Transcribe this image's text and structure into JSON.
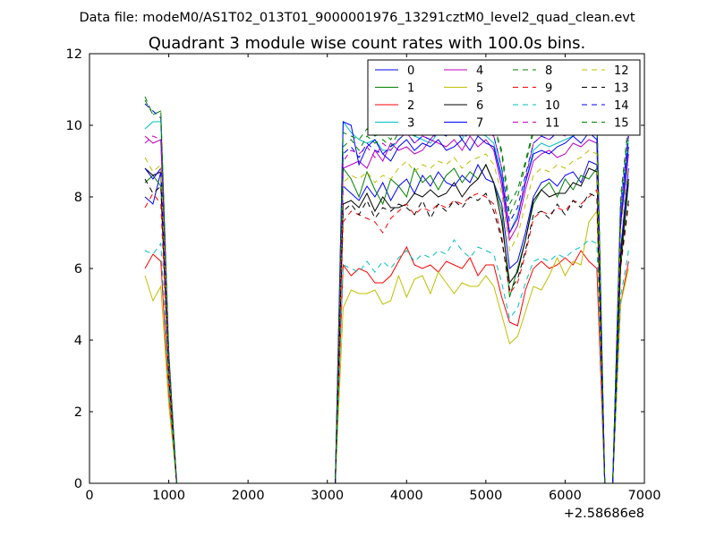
{
  "header": {
    "file_label": "Data file: modeM0/AS1T02_013T01_9000001976_13291cztM0_level2_quad_clean.evt"
  },
  "chart_data": {
    "type": "line",
    "title": "Quadrant 3 module wise count rates with 100.0s bins.",
    "xlabel": "",
    "ylabel": "",
    "x_offset_label": "+2.58686e8",
    "xlim": [
      0,
      7000
    ],
    "ylim": [
      0,
      12
    ],
    "xticks": [
      0,
      1000,
      2000,
      3000,
      4000,
      5000,
      6000,
      7000
    ],
    "yticks": [
      0,
      2,
      4,
      6,
      8,
      10,
      12
    ],
    "grid": false,
    "legend_position": "top-right",
    "legend_columns": 4,
    "x": [
      700,
      800,
      900,
      1000,
      1100,
      1200,
      1300,
      1400,
      1500,
      1600,
      1700,
      1800,
      1900,
      2000,
      2100,
      2200,
      2300,
      2400,
      2500,
      2600,
      2700,
      2800,
      2900,
      3000,
      3100,
      3200,
      3300,
      3400,
      3500,
      3600,
      3700,
      3800,
      3900,
      4000,
      4100,
      4200,
      4300,
      4400,
      4500,
      4600,
      4700,
      4800,
      4900,
      5000,
      5100,
      5200,
      5300,
      5400,
      5500,
      5600,
      5700,
      5800,
      5900,
      6000,
      6100,
      6200,
      6300,
      6400,
      6500,
      6600,
      6700,
      6800
    ],
    "series": [
      {
        "name": "0",
        "color": "#0000ff",
        "dash": "solid",
        "values": [
          8.0,
          7.8,
          8.7,
          3.0,
          0,
          0,
          0,
          0,
          0,
          0,
          0,
          0,
          0,
          0,
          0,
          0,
          0,
          0,
          0,
          0,
          0,
          0,
          0,
          0,
          0,
          8.3,
          8.1,
          7.9,
          8.3,
          8.0,
          8.4,
          7.9,
          8.3,
          8.5,
          8.1,
          8.6,
          8.3,
          8.7,
          8.4,
          8.3,
          8.6,
          8.4,
          8.9,
          8.5,
          8.4,
          7.8,
          6.0,
          6.2,
          7.0,
          8.0,
          8.4,
          8.5,
          8.3,
          8.6,
          8.7,
          8.4,
          9.0,
          8.9,
          0,
          0,
          6.5,
          8.8
        ]
      },
      {
        "name": "1",
        "color": "#008000",
        "dash": "solid",
        "values": [
          8.4,
          8.6,
          8.3,
          3.0,
          0,
          0,
          0,
          0,
          0,
          0,
          0,
          0,
          0,
          0,
          0,
          0,
          0,
          0,
          0,
          0,
          0,
          0,
          0,
          0,
          0,
          8.8,
          8.5,
          8.0,
          8.7,
          8.2,
          7.8,
          8.5,
          8.3,
          8.0,
          8.8,
          8.4,
          8.6,
          8.2,
          8.6,
          8.8,
          8.4,
          8.7,
          8.5,
          8.9,
          8.4,
          7.6,
          5.2,
          6.0,
          6.8,
          7.8,
          8.2,
          8.4,
          8.0,
          8.5,
          8.2,
          8.6,
          8.5,
          8.8,
          0,
          0,
          6.0,
          8.4
        ]
      },
      {
        "name": "2",
        "color": "#ff0000",
        "dash": "solid",
        "values": [
          6.0,
          6.4,
          6.2,
          2.5,
          0,
          0,
          0,
          0,
          0,
          0,
          0,
          0,
          0,
          0,
          0,
          0,
          0,
          0,
          0,
          0,
          0,
          0,
          0,
          0,
          0,
          6.1,
          5.8,
          6.0,
          5.9,
          5.6,
          5.6,
          5.8,
          6.2,
          6.6,
          6.1,
          6.0,
          6.1,
          5.9,
          6.2,
          6.1,
          6.0,
          6.3,
          5.8,
          6.1,
          6.1,
          5.2,
          4.5,
          4.4,
          5.4,
          6.0,
          6.2,
          6.0,
          6.1,
          6.3,
          6.1,
          6.5,
          6.2,
          6.0,
          0,
          0,
          5.0,
          6.2
        ]
      },
      {
        "name": "3",
        "color": "#00bfbf",
        "dash": "solid",
        "values": [
          9.9,
          10.1,
          10.1,
          3.5,
          0,
          0,
          0,
          0,
          0,
          0,
          0,
          0,
          0,
          0,
          0,
          0,
          0,
          0,
          0,
          0,
          0,
          0,
          0,
          0,
          0,
          10.1,
          9.8,
          9.6,
          9.5,
          9.6,
          9.3,
          9.3,
          9.6,
          9.8,
          9.7,
          9.6,
          9.5,
          9.8,
          9.7,
          9.9,
          9.6,
          10.0,
          9.8,
          9.7,
          9.5,
          8.6,
          7.0,
          7.5,
          8.4,
          9.3,
          9.5,
          9.4,
          9.5,
          9.6,
          9.7,
          9.8,
          9.9,
          10.0,
          0,
          0,
          7.5,
          9.6
        ]
      },
      {
        "name": "4",
        "color": "#bf00bf",
        "dash": "solid",
        "values": [
          9.7,
          9.5,
          9.6,
          3.4,
          0,
          0,
          0,
          0,
          0,
          0,
          0,
          0,
          0,
          0,
          0,
          0,
          0,
          0,
          0,
          0,
          0,
          0,
          0,
          0,
          0,
          8.8,
          8.9,
          9.0,
          8.8,
          9.3,
          9.0,
          9.5,
          9.3,
          9.4,
          9.2,
          9.3,
          9.6,
          9.5,
          9.4,
          9.6,
          9.3,
          9.7,
          9.4,
          9.6,
          9.3,
          8.3,
          6.8,
          7.2,
          8.2,
          9.0,
          9.2,
          9.3,
          9.1,
          9.2,
          9.5,
          9.4,
          9.6,
          9.5,
          0,
          0,
          7.2,
          9.2
        ]
      },
      {
        "name": "5",
        "color": "#bfbf00",
        "dash": "solid",
        "values": [
          5.8,
          5.1,
          5.5,
          2.2,
          0,
          0,
          0,
          0,
          0,
          0,
          0,
          0,
          0,
          0,
          0,
          0,
          0,
          0,
          0,
          0,
          0,
          0,
          0,
          0,
          0,
          4.9,
          5.4,
          5.3,
          5.3,
          5.4,
          5.0,
          5.1,
          5.8,
          5.2,
          5.7,
          5.8,
          5.3,
          5.9,
          5.6,
          5.3,
          5.6,
          5.5,
          5.5,
          5.8,
          5.5,
          4.7,
          3.9,
          4.1,
          4.8,
          5.5,
          5.4,
          5.8,
          6.3,
          5.8,
          6.2,
          6.1,
          7.3,
          7.6,
          0,
          0,
          5.0,
          6.0
        ]
      },
      {
        "name": "6",
        "color": "#000000",
        "dash": "solid",
        "values": [
          8.8,
          8.6,
          8.7,
          3.1,
          0,
          0,
          0,
          0,
          0,
          0,
          0,
          0,
          0,
          0,
          0,
          0,
          0,
          0,
          0,
          0,
          0,
          0,
          0,
          0,
          0,
          7.8,
          7.9,
          7.7,
          8.1,
          7.6,
          8.0,
          7.7,
          7.7,
          7.8,
          8.1,
          8.0,
          8.2,
          8.0,
          8.1,
          8.4,
          8.0,
          8.3,
          8.5,
          8.9,
          8.4,
          7.3,
          5.6,
          5.9,
          6.8,
          7.9,
          8.2,
          8.0,
          8.1,
          8.1,
          8.4,
          8.3,
          8.8,
          8.7,
          0,
          0,
          6.3,
          8.5
        ]
      },
      {
        "name": "7",
        "color": "#0000ff",
        "dash": "solid",
        "values": [
          8.8,
          8.5,
          8.8,
          3.1,
          0,
          0,
          0,
          0,
          0,
          0,
          0,
          0,
          0,
          0,
          0,
          0,
          0,
          0,
          0,
          0,
          0,
          0,
          0,
          0,
          0,
          10.1,
          10.0,
          8.9,
          9.4,
          9.6,
          9.2,
          9.0,
          9.4,
          9.6,
          9.3,
          9.5,
          9.4,
          9.6,
          9.3,
          9.4,
          9.6,
          9.3,
          9.7,
          9.5,
          9.4,
          8.5,
          7.0,
          7.4,
          8.4,
          9.2,
          9.3,
          9.2,
          9.4,
          9.5,
          9.7,
          9.5,
          9.8,
          9.6,
          0,
          0,
          7.3,
          9.4
        ]
      },
      {
        "name": "8",
        "color": "#008000",
        "dash": "dashed",
        "values": [
          10.8,
          10.3,
          10.4,
          3.7,
          0,
          0,
          0,
          0,
          0,
          0,
          0,
          0,
          0,
          0,
          0,
          0,
          0,
          0,
          0,
          0,
          0,
          0,
          0,
          0,
          0,
          9.4,
          9.6,
          9.3,
          9.7,
          9.5,
          9.6,
          9.4,
          9.8,
          10.0,
          9.7,
          9.8,
          10.1,
          9.9,
          10.0,
          10.3,
          10.1,
          10.0,
          10.1,
          10.2,
          10.0,
          9.2,
          7.5,
          8.0,
          8.9,
          9.8,
          10.0,
          9.9,
          10.1,
          10.2,
          10.0,
          10.3,
          10.2,
          10.4,
          0,
          0,
          7.8,
          10.0
        ]
      },
      {
        "name": "9",
        "color": "#ff0000",
        "dash": "dashed",
        "values": [
          7.7,
          8.1,
          7.8,
          2.9,
          0,
          0,
          0,
          0,
          0,
          0,
          0,
          0,
          0,
          0,
          0,
          0,
          0,
          0,
          0,
          0,
          0,
          0,
          0,
          0,
          0,
          7.3,
          7.6,
          7.5,
          7.4,
          7.3,
          7.0,
          7.4,
          7.6,
          7.8,
          7.5,
          7.7,
          7.6,
          7.8,
          7.7,
          7.9,
          7.8,
          8.0,
          8.1,
          8.0,
          7.8,
          6.9,
          5.3,
          5.6,
          6.4,
          7.4,
          7.6,
          7.5,
          7.7,
          7.6,
          7.9,
          7.8,
          8.0,
          8.2,
          0,
          0,
          6.0,
          7.8
        ]
      },
      {
        "name": "10",
        "color": "#00bfbf",
        "dash": "dashed",
        "values": [
          6.5,
          6.4,
          6.7,
          2.6,
          0,
          0,
          0,
          0,
          0,
          0,
          0,
          0,
          0,
          0,
          0,
          0,
          0,
          0,
          0,
          0,
          0,
          0,
          0,
          0,
          0,
          6.1,
          6.0,
          5.9,
          6.2,
          5.9,
          6.2,
          6.0,
          6.3,
          6.5,
          6.2,
          6.4,
          6.3,
          6.5,
          6.4,
          6.8,
          6.5,
          6.3,
          6.6,
          6.5,
          6.4,
          5.6,
          4.6,
          4.9,
          5.6,
          6.2,
          6.3,
          6.2,
          6.4,
          6.3,
          6.5,
          6.6,
          6.8,
          6.7,
          0,
          0,
          5.2,
          6.5
        ]
      },
      {
        "name": "11",
        "color": "#bf00bf",
        "dash": "dashed",
        "values": [
          9.5,
          9.7,
          9.6,
          3.4,
          0,
          0,
          0,
          0,
          0,
          0,
          0,
          0,
          0,
          0,
          0,
          0,
          0,
          0,
          0,
          0,
          0,
          0,
          0,
          0,
          0,
          9.0,
          9.3,
          9.2,
          9.4,
          9.1,
          9.5,
          9.3,
          9.6,
          9.8,
          9.5,
          9.7,
          9.6,
          9.9,
          9.8,
          10.1,
          9.7,
          9.9,
          10.0,
          9.8,
          9.7,
          8.8,
          7.0,
          7.4,
          8.5,
          9.5,
          9.7,
          9.6,
          9.8,
          9.7,
          10.1,
          10.0,
          10.3,
          10.2,
          0,
          0,
          7.6,
          9.8
        ]
      },
      {
        "name": "12",
        "color": "#bfbf00",
        "dash": "dashed",
        "values": [
          9.1,
          8.7,
          8.9,
          3.2,
          0,
          0,
          0,
          0,
          0,
          0,
          0,
          0,
          0,
          0,
          0,
          0,
          0,
          0,
          0,
          0,
          0,
          0,
          0,
          0,
          0,
          8.4,
          8.6,
          8.5,
          8.7,
          8.4,
          8.6,
          8.5,
          8.8,
          9.0,
          8.7,
          8.9,
          8.8,
          9.0,
          8.9,
          9.1,
          8.8,
          9.0,
          9.1,
          9.2,
          8.9,
          8.1,
          6.5,
          6.9,
          7.8,
          8.6,
          8.8,
          8.7,
          8.9,
          8.8,
          9.0,
          9.1,
          9.3,
          9.2,
          0,
          0,
          7.0,
          8.9
        ]
      },
      {
        "name": "13",
        "color": "#000000",
        "dash": "dashed",
        "values": [
          8.5,
          8.1,
          8.3,
          3.0,
          0,
          0,
          0,
          0,
          0,
          0,
          0,
          0,
          0,
          0,
          0,
          0,
          0,
          0,
          0,
          0,
          0,
          0,
          0,
          0,
          0,
          7.6,
          7.8,
          7.5,
          7.9,
          7.4,
          7.7,
          7.6,
          7.8,
          7.7,
          7.5,
          7.9,
          7.4,
          7.8,
          7.6,
          7.9,
          7.7,
          8.0,
          7.9,
          8.1,
          7.6,
          6.8,
          5.4,
          5.7,
          6.5,
          7.5,
          7.6,
          7.4,
          7.8,
          7.5,
          7.9,
          7.7,
          8.1,
          8.0,
          0,
          0,
          6.1,
          7.9
        ]
      },
      {
        "name": "14",
        "color": "#0000ff",
        "dash": "dashed",
        "values": [
          10.6,
          10.4,
          10.2,
          3.6,
          0,
          0,
          0,
          0,
          0,
          0,
          0,
          0,
          0,
          0,
          0,
          0,
          0,
          0,
          0,
          0,
          0,
          0,
          0,
          0,
          0,
          9.2,
          9.4,
          9.1,
          9.5,
          9.3,
          9.2,
          9.4,
          9.6,
          9.8,
          9.5,
          9.7,
          9.6,
          9.8,
          9.7,
          10.0,
          9.6,
          9.8,
          9.9,
          10.0,
          9.7,
          8.8,
          7.3,
          7.7,
          8.6,
          9.5,
          9.7,
          9.6,
          9.8,
          9.7,
          10.0,
          9.9,
          10.2,
          10.1,
          0,
          0,
          7.7,
          9.7
        ]
      },
      {
        "name": "15",
        "color": "#008000",
        "dash": "dashed",
        "values": [
          10.7,
          10.3,
          10.4,
          3.7,
          0,
          0,
          0,
          0,
          0,
          0,
          0,
          0,
          0,
          0,
          0,
          0,
          0,
          0,
          0,
          0,
          0,
          0,
          0,
          0,
          0,
          9.8,
          9.7,
          9.6,
          9.9,
          9.7,
          9.8,
          9.6,
          10.0,
          10.1,
          9.9,
          10.0,
          10.2,
          10.1,
          10.2,
          10.4,
          10.2,
          10.1,
          10.3,
          10.2,
          10.0,
          9.3,
          7.8,
          8.2,
          9.0,
          9.9,
          10.1,
          10.0,
          10.2,
          10.3,
          10.1,
          10.4,
          10.3,
          10.5,
          0,
          0,
          8.0,
          10.1
        ]
      }
    ]
  }
}
